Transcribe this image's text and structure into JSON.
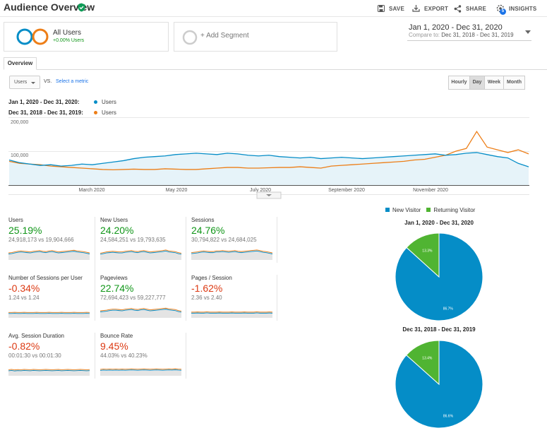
{
  "header": {
    "title": "Audience Overview",
    "save_label": "SAVE",
    "export_label": "EXPORT",
    "share_label": "SHARE",
    "insights_label": "INSIGHTS",
    "insights_badge": "5"
  },
  "segments": {
    "active": {
      "name": "All Users",
      "change": "+0.00% Users"
    },
    "add_label": "+ Add Segment"
  },
  "date_range": {
    "main": "Jan 1, 2020 - Dec 31, 2020",
    "compare_label": "Compare to:",
    "compare_value": "Dec 31, 2018 - Dec 31, 2019"
  },
  "tabs": [
    {
      "label": "Overview"
    }
  ],
  "metric_picker": {
    "selected": "Users",
    "vs": "VS.",
    "select_link": "Select a metric"
  },
  "granularity": [
    {
      "label": "Hourly"
    },
    {
      "label": "Day"
    },
    {
      "label": "Week"
    },
    {
      "label": "Month"
    }
  ],
  "legend": [
    {
      "range": "Jan 1, 2020 - Dec 31, 2020:",
      "metric": "Users",
      "color": "#058dc7"
    },
    {
      "range": "Dec 31, 2018 - Dec 31, 2019:",
      "metric": "Users",
      "color": "#ed7e17"
    }
  ],
  "chart_data": [
    {
      "type": "line",
      "y_ticks": [
        "200,000",
        "100,000"
      ],
      "ylim": [
        0,
        200000
      ],
      "x_labels": [
        "March 2020",
        "May 2020",
        "July 2020",
        "September 2020",
        "November 2020"
      ],
      "series": [
        {
          "name": "Users",
          "color": "#058dc7",
          "values": [
            74000,
            66000,
            62000,
            58000,
            60000,
            56000,
            58000,
            62000,
            60000,
            64000,
            68000,
            72000,
            78000,
            82000,
            84000,
            86000,
            90000,
            92000,
            94000,
            92000,
            90000,
            94000,
            92000,
            88000,
            86000,
            88000,
            84000,
            82000,
            80000,
            82000,
            78000,
            80000,
            82000,
            80000,
            78000,
            80000,
            82000,
            84000,
            86000,
            88000,
            90000,
            92000,
            88000,
            90000,
            94000,
            96000,
            90000,
            84000,
            80000,
            64000,
            54000
          ]
        },
        {
          "name": "Users",
          "color": "#ed7e17",
          "values": [
            70000,
            64000,
            62000,
            60000,
            56000,
            54000,
            52000,
            50000,
            48000,
            46000,
            45000,
            46000,
            47000,
            46000,
            46000,
            48000,
            47000,
            46000,
            46000,
            48000,
            50000,
            52000,
            52000,
            50000,
            50000,
            51000,
            52000,
            52000,
            54000,
            52000,
            50000,
            56000,
            58000,
            60000,
            62000,
            64000,
            66000,
            68000,
            70000,
            74000,
            76000,
            82000,
            88000,
            100000,
            108000,
            158000,
            112000,
            104000,
            96000,
            104000,
            92000
          ]
        }
      ]
    },
    {
      "type": "pie",
      "title": "Jan 1, 2020 - Dec 31, 2020",
      "slices": [
        {
          "label": "New Visitor",
          "value": 86.7,
          "display": "86.7%",
          "color": "#058dc7"
        },
        {
          "label": "Returning Visitor",
          "value": 13.3,
          "display": "13.3%",
          "color": "#50b432"
        }
      ]
    },
    {
      "type": "pie",
      "title": "Dec 31, 2018 - Dec 31, 2019",
      "slices": [
        {
          "label": "New Visitor",
          "value": 86.6,
          "display": "86.6%",
          "color": "#058dc7"
        },
        {
          "label": "Returning Visitor",
          "value": 13.4,
          "display": "13.4%",
          "color": "#50b432"
        }
      ]
    }
  ],
  "pie_legend": [
    {
      "label": "New Visitor",
      "color": "#058dc7"
    },
    {
      "label": "Returning Visitor",
      "color": "#50b432"
    }
  ],
  "scorecards": [
    {
      "label": "Users",
      "pct": "25.19%",
      "trend": "up",
      "comparison": "24,918,173 vs 19,904,666",
      "spark": [
        60,
        62,
        66,
        70,
        72,
        70,
        68,
        66,
        70,
        72,
        74,
        70,
        68,
        72,
        74,
        70,
        66,
        68,
        70,
        72,
        74,
        76,
        72,
        70,
        68,
        64,
        60
      ]
    },
    {
      "label": "New Users",
      "pct": "24.20%",
      "trend": "up",
      "comparison": "24,584,251 vs 19,793,635",
      "spark": [
        58,
        62,
        66,
        68,
        70,
        68,
        66,
        66,
        70,
        72,
        74,
        70,
        68,
        72,
        74,
        70,
        66,
        68,
        70,
        72,
        74,
        78,
        72,
        70,
        68,
        62,
        58
      ]
    },
    {
      "label": "Sessions",
      "pct": "24.76%",
      "trend": "up",
      "comparison": "30,794,822 vs 24,684,025",
      "spark": [
        62,
        64,
        66,
        70,
        72,
        70,
        68,
        68,
        72,
        72,
        74,
        72,
        70,
        72,
        74,
        70,
        68,
        70,
        72,
        74,
        76,
        78,
        74,
        70,
        68,
        64,
        60
      ]
    },
    {
      "label": "Number of Sessions per User",
      "pct": "-0.34%",
      "trend": "down",
      "comparison": "1.24 vs 1.24",
      "spark": [
        50,
        50,
        51,
        50,
        50,
        51,
        50,
        50,
        50,
        51,
        50,
        50,
        50,
        51,
        50,
        50,
        50,
        51,
        50,
        50,
        50,
        51,
        50,
        50,
        50,
        51,
        50
      ]
    },
    {
      "label": "Pageviews",
      "pct": "22.74%",
      "trend": "up",
      "comparison": "72,694,423 vs 59,227,777",
      "spark": [
        60,
        62,
        64,
        68,
        70,
        70,
        68,
        66,
        70,
        72,
        74,
        70,
        68,
        72,
        74,
        70,
        66,
        68,
        70,
        72,
        74,
        76,
        72,
        70,
        68,
        62,
        58
      ]
    },
    {
      "label": "Pages / Session",
      "pct": "-1.62%",
      "trend": "down",
      "comparison": "2.36 vs 2.40",
      "spark": [
        52,
        52,
        53,
        52,
        52,
        54,
        52,
        52,
        52,
        53,
        52,
        52,
        52,
        53,
        52,
        52,
        52,
        53,
        52,
        52,
        52,
        54,
        52,
        52,
        52,
        53,
        52
      ]
    },
    {
      "label": "Avg. Session Duration",
      "pct": "-0.82%",
      "trend": "down",
      "comparison": "00:01:30 vs 00:01:30",
      "spark": [
        54,
        56,
        53,
        55,
        54,
        56,
        55,
        54,
        56,
        55,
        54,
        55,
        56,
        55,
        54,
        55,
        56,
        54,
        55,
        56,
        55,
        54,
        55,
        56,
        55,
        54,
        55
      ]
    },
    {
      "label": "Bounce Rate",
      "pct": "9.45%",
      "trend": "down",
      "comparison": "44.03% vs 40.23%",
      "spark": [
        56,
        58,
        57,
        58,
        57,
        58,
        57,
        58,
        57,
        58,
        59,
        58,
        57,
        58,
        59,
        58,
        57,
        58,
        59,
        58,
        57,
        58,
        59,
        58,
        60,
        58,
        57
      ]
    }
  ]
}
